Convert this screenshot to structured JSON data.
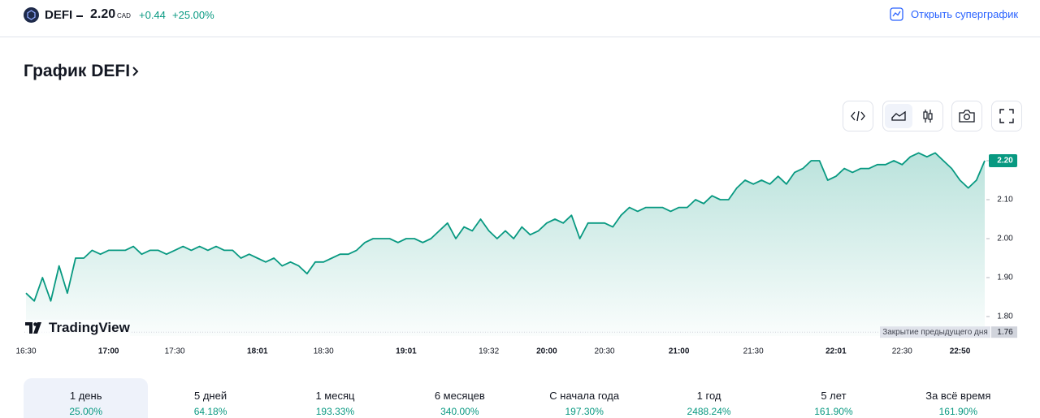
{
  "header": {
    "symbol": "DEFI",
    "price": "2.20",
    "currency": "CAD",
    "change": "+0.44",
    "change_percent": "+25.00%",
    "open_button": "Открыть суперграфик"
  },
  "section_title": "График DEFI",
  "branding": "TradingView",
  "chart_data": {
    "type": "line",
    "x": [
      "16:30",
      "16:33",
      "16:36",
      "16:39",
      "16:42",
      "16:45",
      "16:48",
      "16:51",
      "16:54",
      "16:57",
      "17:00",
      "17:04",
      "17:08",
      "17:12",
      "17:15",
      "17:19",
      "17:23",
      "17:26",
      "17:30",
      "17:33",
      "17:36",
      "17:39",
      "17:42",
      "17:45",
      "17:48",
      "17:51",
      "17:54",
      "17:57",
      "18:01",
      "18:05",
      "18:08",
      "18:12",
      "18:15",
      "18:19",
      "18:22",
      "18:26",
      "18:30",
      "18:33",
      "18:36",
      "18:39",
      "18:42",
      "18:45",
      "18:48",
      "18:51",
      "18:54",
      "18:57",
      "19:01",
      "19:04",
      "19:07",
      "19:10",
      "19:13",
      "19:16",
      "19:19",
      "19:22",
      "19:25",
      "19:28",
      "19:32",
      "19:36",
      "19:40",
      "19:44",
      "19:48",
      "19:52",
      "19:56",
      "20:00",
      "20:04",
      "20:09",
      "20:13",
      "20:17",
      "20:21",
      "20:26",
      "20:30",
      "20:33",
      "20:37",
      "20:40",
      "20:43",
      "20:47",
      "20:50",
      "20:53",
      "20:57",
      "21:00",
      "21:03",
      "21:07",
      "21:10",
      "21:13",
      "21:17",
      "21:20",
      "21:23",
      "21:27",
      "21:30",
      "21:33",
      "21:36",
      "21:39",
      "21:42",
      "21:45",
      "21:48",
      "21:51",
      "21:54",
      "21:57",
      "22:01",
      "22:05",
      "22:08",
      "22:12",
      "22:15",
      "22:19",
      "22:22",
      "22:26",
      "22:30",
      "22:33",
      "22:36",
      "22:39",
      "22:42",
      "22:45",
      "22:47",
      "22:50",
      "22:53",
      "22:56",
      "22:59"
    ],
    "series": [
      {
        "name": "DEFI",
        "color": "#089981",
        "values": [
          1.86,
          1.84,
          1.9,
          1.84,
          1.93,
          1.86,
          1.95,
          1.95,
          1.97,
          1.96,
          1.97,
          1.97,
          1.97,
          1.98,
          1.96,
          1.97,
          1.97,
          1.96,
          1.97,
          1.98,
          1.97,
          1.98,
          1.97,
          1.98,
          1.97,
          1.97,
          1.95,
          1.96,
          1.95,
          1.94,
          1.95,
          1.93,
          1.94,
          1.93,
          1.91,
          1.94,
          1.94,
          1.95,
          1.96,
          1.96,
          1.97,
          1.99,
          2.0,
          2.0,
          2.0,
          1.99,
          2.0,
          2.0,
          1.99,
          2.0,
          2.02,
          2.04,
          2.0,
          2.03,
          2.02,
          2.05,
          2.02,
          2.0,
          2.02,
          2.0,
          2.03,
          2.01,
          2.02,
          2.04,
          2.05,
          2.04,
          2.06,
          2.0,
          2.04,
          2.04,
          2.04,
          2.03,
          2.06,
          2.08,
          2.07,
          2.08,
          2.08,
          2.08,
          2.07,
          2.08,
          2.08,
          2.1,
          2.09,
          2.11,
          2.1,
          2.1,
          2.13,
          2.15,
          2.14,
          2.15,
          2.14,
          2.16,
          2.14,
          2.17,
          2.18,
          2.2,
          2.2,
          2.15,
          2.16,
          2.18,
          2.17,
          2.18,
          2.18,
          2.19,
          2.19,
          2.2,
          2.19,
          2.21,
          2.22,
          2.21,
          2.22,
          2.2,
          2.18,
          2.15,
          2.13,
          2.15,
          2.2
        ]
      }
    ],
    "xticks": [
      "16:30",
      "17:00",
      "17:30",
      "18:01",
      "18:30",
      "19:01",
      "19:32",
      "20:00",
      "20:30",
      "21:00",
      "21:30",
      "22:01",
      "22:30",
      "22:50"
    ],
    "ylim": [
      1.75,
      2.25
    ],
    "yticks": [
      {
        "value": 1.8,
        "label": "1.80"
      },
      {
        "value": 1.9,
        "label": "1.90"
      },
      {
        "value": 2.0,
        "label": "2.00"
      },
      {
        "value": 2.1,
        "label": "2.10"
      },
      {
        "value": 2.2,
        "label": "2.20"
      }
    ],
    "last_value_label": "2.20",
    "prev_close": {
      "label": "Закрытие предыдущего дня",
      "value": 1.76
    }
  },
  "periods": [
    {
      "label": "1 день",
      "value": "25.00%"
    },
    {
      "label": "5 дней",
      "value": "64.18%"
    },
    {
      "label": "1 месяц",
      "value": "193.33%"
    },
    {
      "label": "6 месяцев",
      "value": "340.00%"
    },
    {
      "label": "С начала года",
      "value": "197.30%"
    },
    {
      "label": "1 год",
      "value": "2488.24%"
    },
    {
      "label": "5 лет",
      "value": "161.90%"
    },
    {
      "label": "За всё время",
      "value": "161.90%"
    }
  ]
}
